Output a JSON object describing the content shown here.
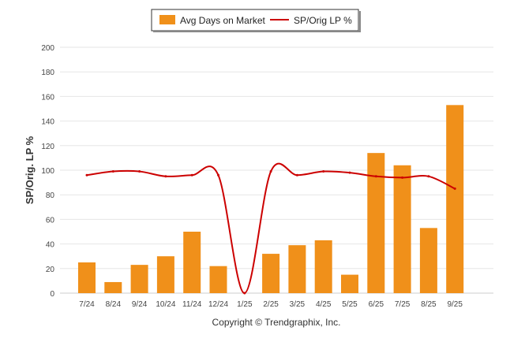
{
  "chart_data": {
    "type": "bar+line",
    "categories": [
      "7/24",
      "8/24",
      "9/24",
      "10/24",
      "11/24",
      "12/24",
      "1/25",
      "2/25",
      "3/25",
      "4/25",
      "5/25",
      "6/25",
      "7/25",
      "8/25",
      "9/25"
    ],
    "series": [
      {
        "name": "Avg Days on Market",
        "type": "bar",
        "color": "#f0901a",
        "values": [
          25,
          9,
          23,
          30,
          50,
          22,
          0,
          32,
          39,
          43,
          15,
          114,
          104,
          53,
          153
        ]
      },
      {
        "name": "SP/Orig LP %",
        "type": "line",
        "color": "#cc0000",
        "values": [
          96,
          99,
          99,
          95,
          96,
          96,
          0,
          99,
          96,
          99,
          98,
          95,
          94,
          95,
          85
        ]
      }
    ],
    "ylabel": "SP/Orig. LP %",
    "ylim": [
      0,
      200
    ],
    "yticks": [
      0,
      20,
      40,
      60,
      80,
      100,
      120,
      140,
      160,
      180,
      200
    ],
    "grid": true,
    "legend": "top-center",
    "footer": "Copyright © Trendgraphix, Inc."
  }
}
